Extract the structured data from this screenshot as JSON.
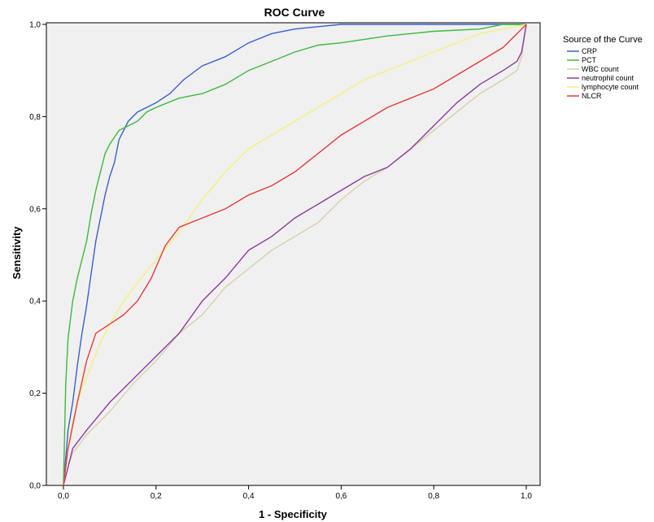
{
  "chart_data": {
    "type": "line",
    "title": "ROC Curve",
    "xlabel": "1 - Specificity",
    "ylabel": "Sensitivity",
    "xlim": [
      0,
      1
    ],
    "ylim": [
      0,
      1
    ],
    "xticks": [
      "0,0",
      "0,2",
      "0,4",
      "0,6",
      "0,8",
      "1,0"
    ],
    "yticks": [
      "0,0",
      "0,2",
      "0,4",
      "0,6",
      "0,8",
      "1,0"
    ],
    "grid": false,
    "background": "#f0f0f0",
    "legend": {
      "title": "Source of the Curve",
      "position": "right"
    },
    "series": [
      {
        "name": "CRP",
        "color": "#3a5fcd",
        "x": [
          0,
          0.01,
          0.02,
          0.03,
          0.04,
          0.05,
          0.06,
          0.07,
          0.08,
          0.09,
          0.1,
          0.11,
          0.12,
          0.14,
          0.16,
          0.18,
          0.2,
          0.23,
          0.26,
          0.3,
          0.35,
          0.4,
          0.45,
          0.5,
          0.55,
          0.6,
          0.7,
          0.8,
          0.9,
          1.0
        ],
        "y": [
          0,
          0.12,
          0.18,
          0.26,
          0.33,
          0.39,
          0.46,
          0.53,
          0.58,
          0.63,
          0.67,
          0.7,
          0.75,
          0.79,
          0.81,
          0.82,
          0.83,
          0.85,
          0.88,
          0.91,
          0.93,
          0.96,
          0.98,
          0.99,
          0.995,
          1.0,
          1.0,
          1.0,
          1.0,
          1.0
        ]
      },
      {
        "name": "PCT",
        "color": "#3cb93c",
        "x": [
          0,
          0.005,
          0.01,
          0.02,
          0.03,
          0.04,
          0.05,
          0.06,
          0.07,
          0.08,
          0.09,
          0.1,
          0.12,
          0.14,
          0.16,
          0.18,
          0.2,
          0.25,
          0.3,
          0.35,
          0.4,
          0.45,
          0.5,
          0.55,
          0.6,
          0.7,
          0.8,
          0.9,
          0.95,
          1.0
        ],
        "y": [
          0,
          0.22,
          0.32,
          0.4,
          0.45,
          0.49,
          0.53,
          0.59,
          0.64,
          0.68,
          0.72,
          0.74,
          0.77,
          0.78,
          0.79,
          0.81,
          0.82,
          0.84,
          0.85,
          0.87,
          0.9,
          0.92,
          0.94,
          0.955,
          0.96,
          0.975,
          0.985,
          0.99,
          1.0,
          1.0
        ]
      },
      {
        "name": "WBC count",
        "color": "#d8cfae",
        "x": [
          0,
          0.01,
          0.02,
          0.05,
          0.1,
          0.15,
          0.2,
          0.25,
          0.3,
          0.35,
          0.4,
          0.45,
          0.5,
          0.55,
          0.6,
          0.65,
          0.7,
          0.75,
          0.8,
          0.85,
          0.9,
          0.95,
          0.98,
          0.99,
          1.0
        ],
        "y": [
          0,
          0.04,
          0.07,
          0.11,
          0.16,
          0.22,
          0.27,
          0.33,
          0.37,
          0.43,
          0.47,
          0.51,
          0.54,
          0.57,
          0.62,
          0.66,
          0.69,
          0.73,
          0.77,
          0.81,
          0.85,
          0.88,
          0.9,
          0.93,
          1.0
        ]
      },
      {
        "name": "neutrophil count",
        "color": "#8e3a9e",
        "x": [
          0,
          0.01,
          0.02,
          0.05,
          0.1,
          0.15,
          0.2,
          0.25,
          0.3,
          0.35,
          0.4,
          0.45,
          0.5,
          0.55,
          0.6,
          0.65,
          0.7,
          0.75,
          0.8,
          0.85,
          0.9,
          0.95,
          0.98,
          0.99,
          1.0
        ],
        "y": [
          0,
          0.04,
          0.08,
          0.12,
          0.18,
          0.23,
          0.28,
          0.33,
          0.4,
          0.45,
          0.51,
          0.54,
          0.58,
          0.61,
          0.64,
          0.67,
          0.69,
          0.73,
          0.78,
          0.83,
          0.87,
          0.9,
          0.92,
          0.94,
          1.0
        ]
      },
      {
        "name": "lymphocyte count",
        "color": "#f5f07a",
        "x": [
          0,
          0.01,
          0.02,
          0.04,
          0.06,
          0.08,
          0.1,
          0.13,
          0.16,
          0.2,
          0.25,
          0.3,
          0.35,
          0.4,
          0.45,
          0.5,
          0.55,
          0.6,
          0.65,
          0.7,
          0.75,
          0.8,
          0.85,
          0.9,
          0.95,
          1.0
        ],
        "y": [
          0,
          0.08,
          0.14,
          0.21,
          0.26,
          0.31,
          0.35,
          0.4,
          0.44,
          0.49,
          0.55,
          0.62,
          0.68,
          0.73,
          0.76,
          0.79,
          0.82,
          0.85,
          0.88,
          0.9,
          0.92,
          0.94,
          0.96,
          0.98,
          0.99,
          1.0
        ]
      },
      {
        "name": "NLCR",
        "color": "#e53b3b",
        "x": [
          0,
          0.01,
          0.02,
          0.03,
          0.05,
          0.07,
          0.1,
          0.13,
          0.16,
          0.19,
          0.22,
          0.25,
          0.3,
          0.35,
          0.4,
          0.45,
          0.5,
          0.55,
          0.6,
          0.65,
          0.7,
          0.75,
          0.8,
          0.85,
          0.9,
          0.95,
          1.0
        ],
        "y": [
          0,
          0.08,
          0.13,
          0.18,
          0.27,
          0.33,
          0.35,
          0.37,
          0.4,
          0.45,
          0.52,
          0.56,
          0.58,
          0.6,
          0.63,
          0.65,
          0.68,
          0.72,
          0.76,
          0.79,
          0.82,
          0.84,
          0.86,
          0.89,
          0.92,
          0.95,
          1.0
        ]
      }
    ]
  }
}
